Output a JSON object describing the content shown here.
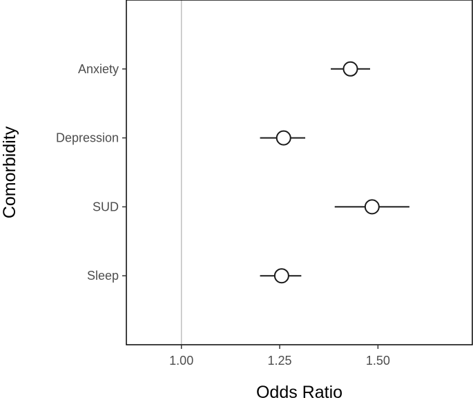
{
  "chart_data": {
    "type": "scatter",
    "subtype": "forest-plot",
    "title": "",
    "xlabel": "Odds Ratio",
    "ylabel": "Comorbidity",
    "xlim": [
      0.86,
      1.74
    ],
    "x_ticks": [
      1.0,
      1.25,
      1.5
    ],
    "x_tick_labels": [
      "1.00",
      "1.25",
      "1.50"
    ],
    "reference_line": 1.0,
    "grid": false,
    "legend": "none",
    "categories": [
      "Anxiety",
      "Depression",
      "SUD",
      "Sleep"
    ],
    "estimates": [
      1.43,
      1.26,
      1.485,
      1.255
    ],
    "ci_lower": [
      1.38,
      1.2,
      1.39,
      1.2
    ],
    "ci_upper": [
      1.48,
      1.315,
      1.58,
      1.305
    ],
    "colors": {
      "panel_border": "#000000",
      "reference_line": "#bebebe",
      "point_fill": "#ffffff",
      "point_stroke": "#1a1a1a",
      "tick_text": "#4d4d4d"
    }
  }
}
